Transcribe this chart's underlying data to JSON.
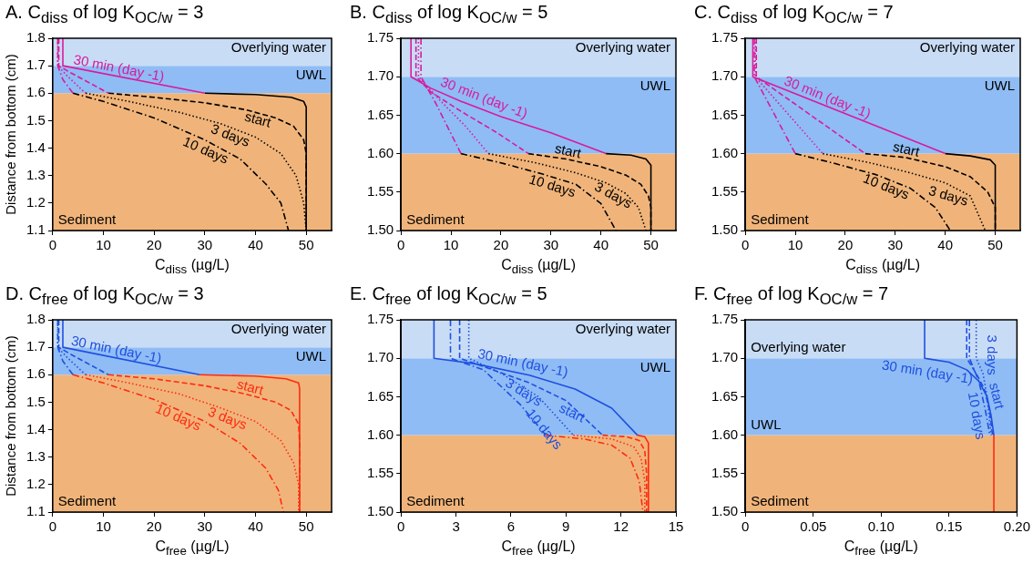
{
  "chart_data": [
    {
      "type": "line",
      "title": "A. C$_{diss}$ of log K$_{OC/w}$ = 3",
      "xlabel": "C$_{diss}$ (µg/L)",
      "ylabel": "Distance from bottom (cm)",
      "xlim": [
        0,
        55
      ],
      "xticks": [
        0,
        10,
        20,
        30,
        40,
        50
      ],
      "ylim": [
        1.1,
        1.8
      ],
      "yticks": [
        1.1,
        1.2,
        1.3,
        1.4,
        1.5,
        1.6,
        1.7,
        1.8
      ],
      "bands": [
        {
          "axis": "y",
          "from": 1.1,
          "to": 1.6,
          "color": "#f0b47a",
          "label": "Sediment"
        },
        {
          "axis": "y",
          "from": 1.6,
          "to": 1.7,
          "color": "#8fbcf5",
          "label": "UWL"
        },
        {
          "axis": "y",
          "from": 1.7,
          "to": 1.8,
          "color": "#c8dcf5",
          "label": "Overlying water"
        }
      ],
      "series": [
        {
          "name": "30 min (day -1)",
          "color": "#d81b9c",
          "line_style": "solid",
          "x": [
            2,
            2,
            30
          ],
          "values": [
            1.8,
            1.7,
            1.6
          ]
        },
        {
          "color": "#000000",
          "line_style": "solid",
          "x": [
            30,
            40,
            47,
            49.5,
            50,
            50
          ],
          "values": [
            1.6,
            1.595,
            1.585,
            1.57,
            1.55,
            1.1
          ]
        },
        {
          "color": "#d81b9c",
          "line_style": "dashed",
          "x": [
            1.2,
            1.2,
            3,
            7,
            11
          ],
          "values": [
            1.8,
            1.7,
            1.68,
            1.64,
            1.6
          ]
        },
        {
          "name": "start",
          "color": "#000000",
          "line_style": "dashed",
          "x": [
            11,
            20,
            30,
            38,
            44,
            47.5,
            49.5,
            50,
            50
          ],
          "values": [
            1.6,
            1.585,
            1.565,
            1.54,
            1.51,
            1.48,
            1.43,
            1.38,
            1.1
          ]
        },
        {
          "color": "#d81b9c",
          "line_style": "dotted",
          "x": [
            1,
            1,
            3,
            6.5
          ],
          "values": [
            1.8,
            1.7,
            1.66,
            1.6
          ]
        },
        {
          "name": "3 days",
          "color": "#000000",
          "line_style": "dotted",
          "x": [
            6.5,
            15,
            25,
            33,
            40,
            45,
            48,
            49.5,
            50
          ],
          "values": [
            1.6,
            1.57,
            1.53,
            1.49,
            1.44,
            1.38,
            1.3,
            1.2,
            1.1
          ]
        },
        {
          "color": "#d81b9c",
          "line_style": "dashdot",
          "x": [
            1,
            1,
            2,
            4
          ],
          "values": [
            1.8,
            1.7,
            1.65,
            1.6
          ]
        },
        {
          "name": "10 days",
          "color": "#000000",
          "line_style": "dashdot",
          "x": [
            4,
            10,
            20,
            30,
            37,
            42,
            45,
            46.5
          ],
          "values": [
            1.6,
            1.57,
            1.51,
            1.43,
            1.36,
            1.27,
            1.2,
            1.1
          ]
        }
      ]
    },
    {
      "type": "line",
      "title": "B. C$_{diss}$ of log K$_{OC/w}$ = 5",
      "xlabel": "C$_{diss}$ (µg/L)",
      "xlim": [
        0,
        55
      ],
      "xticks": [
        0,
        10,
        20,
        30,
        40,
        50
      ],
      "ylim": [
        1.5,
        1.75
      ],
      "yticks": [
        {
          "value": 1.5,
          "label": "1.50"
        },
        1.55,
        {
          "value": 1.6,
          "label": "1.60"
        },
        1.65,
        {
          "value": 1.7,
          "label": "1.70"
        },
        1.75
      ],
      "bands": [
        {
          "axis": "y",
          "from": 1.5,
          "to": 1.6,
          "color": "#f0b47a",
          "label": "Sediment"
        },
        {
          "axis": "y",
          "from": 1.6,
          "to": 1.7,
          "color": "#8fbcf5",
          "label": "UWL"
        },
        {
          "axis": "y",
          "from": 1.7,
          "to": 1.75,
          "color": "#c8dcf5",
          "label": "Overlying water"
        }
      ],
      "series": [
        {
          "name": "30 min (day -1)",
          "color": "#d81b9c",
          "line_style": "solid",
          "x": [
            2,
            2,
            6,
            12,
            20,
            30,
            41
          ],
          "values": [
            1.75,
            1.7,
            1.685,
            1.668,
            1.648,
            1.627,
            1.6
          ]
        },
        {
          "color": "#000000",
          "line_style": "solid",
          "x": [
            41,
            46,
            49,
            50,
            50
          ],
          "values": [
            1.6,
            1.598,
            1.593,
            1.585,
            1.5
          ]
        },
        {
          "color": "#d81b9c",
          "line_style": "dashed",
          "x": [
            3,
            3,
            6,
            12,
            19,
            25.5
          ],
          "values": [
            1.75,
            1.7,
            1.68,
            1.655,
            1.628,
            1.6
          ]
        },
        {
          "name": "start",
          "color": "#000000",
          "line_style": "dashed",
          "x": [
            25.5,
            33,
            40,
            45,
            48,
            49.5,
            50,
            50
          ],
          "values": [
            1.6,
            1.593,
            1.583,
            1.572,
            1.56,
            1.545,
            1.53,
            1.5
          ]
        },
        {
          "color": "#d81b9c",
          "line_style": "dotted",
          "x": [
            3.5,
            3.5,
            8,
            13,
            17.5
          ],
          "values": [
            1.75,
            1.7,
            1.668,
            1.635,
            1.6
          ]
        },
        {
          "name": "3 days",
          "color": "#000000",
          "line_style": "dotted",
          "x": [
            17.5,
            27,
            35,
            41,
            45,
            47.5,
            49
          ],
          "values": [
            1.6,
            1.588,
            1.575,
            1.562,
            1.548,
            1.53,
            1.5
          ]
        },
        {
          "color": "#d81b9c",
          "line_style": "dashdot",
          "x": [
            4,
            4,
            7,
            12
          ],
          "values": [
            1.75,
            1.7,
            1.665,
            1.6
          ]
        },
        {
          "name": "10 days",
          "color": "#000000",
          "line_style": "dashdot",
          "x": [
            12,
            20,
            28,
            35,
            40,
            43
          ],
          "values": [
            1.6,
            1.588,
            1.574,
            1.56,
            1.535,
            1.5
          ]
        }
      ]
    },
    {
      "type": "line",
      "title": "C. C$_{diss}$ of log K$_{OC/w}$ = 7",
      "xlabel": "C$_{diss}$ (µg/L)",
      "xlim": [
        0,
        55
      ],
      "xticks": [
        0,
        10,
        20,
        30,
        40,
        50
      ],
      "ylim": [
        1.5,
        1.75
      ],
      "yticks": [
        {
          "value": 1.5,
          "label": "1.50"
        },
        1.55,
        {
          "value": 1.6,
          "label": "1.60"
        },
        1.65,
        {
          "value": 1.7,
          "label": "1.70"
        },
        1.75
      ],
      "bands": [
        {
          "axis": "y",
          "from": 1.5,
          "to": 1.6,
          "color": "#f0b47a",
          "label": "Sediment"
        },
        {
          "axis": "y",
          "from": 1.6,
          "to": 1.7,
          "color": "#8fbcf5",
          "label": "UWL"
        },
        {
          "axis": "y",
          "from": 1.7,
          "to": 1.75,
          "color": "#c8dcf5",
          "label": "Overlying water"
        }
      ],
      "series": [
        {
          "name": "30 min (day -1)",
          "color": "#d81b9c",
          "line_style": "solid",
          "x": [
            1.5,
            1.5,
            40
          ],
          "values": [
            1.75,
            1.7,
            1.6
          ]
        },
        {
          "color": "#000000",
          "line_style": "solid",
          "x": [
            40,
            45,
            49,
            50,
            50
          ],
          "values": [
            1.6,
            1.597,
            1.592,
            1.585,
            1.5
          ]
        },
        {
          "color": "#d81b9c",
          "line_style": "dashed",
          "x": [
            2.2,
            2.2,
            24
          ],
          "values": [
            1.75,
            1.7,
            1.6
          ]
        },
        {
          "name": "start",
          "color": "#000000",
          "line_style": "dashed",
          "x": [
            24,
            32,
            40,
            45,
            48.5,
            50,
            50
          ],
          "values": [
            1.6,
            1.595,
            1.583,
            1.57,
            1.55,
            1.53,
            1.5
          ]
        },
        {
          "color": "#d81b9c",
          "line_style": "dotted",
          "x": [
            2,
            2,
            15.5
          ],
          "values": [
            1.75,
            1.7,
            1.6
          ]
        },
        {
          "name": "3 days",
          "color": "#000000",
          "line_style": "dotted",
          "x": [
            15.5,
            25,
            33,
            40,
            45,
            48
          ],
          "values": [
            1.6,
            1.588,
            1.575,
            1.562,
            1.545,
            1.5
          ]
        },
        {
          "color": "#d81b9c",
          "line_style": "dashdot",
          "x": [
            1.8,
            1.8,
            10
          ],
          "values": [
            1.75,
            1.7,
            1.6
          ]
        },
        {
          "name": "10 days",
          "color": "#000000",
          "line_style": "dashdot",
          "x": [
            10,
            18,
            26,
            33,
            38,
            41
          ],
          "values": [
            1.6,
            1.587,
            1.573,
            1.555,
            1.53,
            1.5
          ]
        }
      ]
    },
    {
      "type": "line",
      "title": "D. C$_{free}$ of log K$_{OC/w}$ = 3",
      "xlabel": "C$_{free}$ (µg/L)",
      "ylabel": "Distance from bottom (cm)",
      "xlim": [
        0,
        55
      ],
      "xticks": [
        0,
        10,
        20,
        30,
        40,
        50
      ],
      "ylim": [
        1.1,
        1.8
      ],
      "yticks": [
        1.1,
        1.2,
        1.3,
        1.4,
        1.5,
        1.6,
        1.7,
        1.8
      ],
      "bands": [
        {
          "axis": "y",
          "from": 1.1,
          "to": 1.6,
          "color": "#f0b47a",
          "label": "Sediment"
        },
        {
          "axis": "y",
          "from": 1.6,
          "to": 1.7,
          "color": "#8fbcf5",
          "label": "UWL"
        },
        {
          "axis": "y",
          "from": 1.7,
          "to": 1.8,
          "color": "#c8dcf5",
          "label": "Overlying water"
        }
      ],
      "series": [
        {
          "name": "30 min (day -1)",
          "color": "#1f4fe0",
          "line_style": "solid",
          "x": [
            2,
            2,
            29
          ],
          "values": [
            1.8,
            1.7,
            1.6
          ]
        },
        {
          "color": "#ff2a10",
          "line_style": "solid",
          "x": [
            29,
            40,
            46,
            48.5,
            48.7,
            48.7
          ],
          "values": [
            1.6,
            1.595,
            1.585,
            1.57,
            1.55,
            1.1
          ]
        },
        {
          "color": "#1f4fe0",
          "line_style": "dashed",
          "x": [
            1.2,
            1.2,
            4,
            11
          ],
          "values": [
            1.8,
            1.7,
            1.67,
            1.6
          ]
        },
        {
          "name": "start",
          "color": "#ff2a10",
          "line_style": "dashed",
          "x": [
            11,
            20,
            30,
            38,
            44,
            47,
            48.5,
            48.7,
            48.7
          ],
          "values": [
            1.6,
            1.585,
            1.56,
            1.53,
            1.5,
            1.47,
            1.42,
            1.35,
            1.1
          ]
        },
        {
          "color": "#1f4fe0",
          "line_style": "dotted",
          "x": [
            1,
            1,
            3,
            6.5
          ],
          "values": [
            1.8,
            1.7,
            1.66,
            1.6
          ]
        },
        {
          "name": "3 days",
          "color": "#ff2a10",
          "line_style": "dotted",
          "x": [
            6.5,
            15,
            25,
            33,
            40,
            45,
            47.5,
            48.5,
            48.5
          ],
          "values": [
            1.6,
            1.57,
            1.53,
            1.48,
            1.43,
            1.36,
            1.28,
            1.2,
            1.1
          ]
        },
        {
          "color": "#1f4fe0",
          "line_style": "dashdot",
          "x": [
            1,
            1,
            2,
            4
          ],
          "values": [
            1.8,
            1.7,
            1.65,
            1.6
          ]
        },
        {
          "name": "10 days",
          "color": "#ff2a10",
          "line_style": "dashdot",
          "x": [
            4,
            10,
            20,
            30,
            37,
            42,
            44.5,
            45.5
          ],
          "values": [
            1.6,
            1.57,
            1.51,
            1.43,
            1.35,
            1.26,
            1.18,
            1.1
          ]
        }
      ]
    },
    {
      "type": "line",
      "title": "E. C$_{free}$ of log K$_{OC/w}$ = 5",
      "xlabel": "C$_{free}$ (µg/L)",
      "xlim": [
        0,
        15
      ],
      "xticks": [
        0,
        3,
        6,
        9,
        12,
        15
      ],
      "ylim": [
        1.5,
        1.75
      ],
      "yticks": [
        {
          "value": 1.5,
          "label": "1.50"
        },
        1.55,
        {
          "value": 1.6,
          "label": "1.60"
        },
        1.65,
        {
          "value": 1.7,
          "label": "1.70"
        },
        1.75
      ],
      "bands": [
        {
          "axis": "y",
          "from": 1.5,
          "to": 1.6,
          "color": "#f0b47a",
          "label": "Sediment"
        },
        {
          "axis": "y",
          "from": 1.6,
          "to": 1.7,
          "color": "#8fbcf5",
          "label": "UWL"
        },
        {
          "axis": "y",
          "from": 1.7,
          "to": 1.75,
          "color": "#c8dcf5",
          "label": "Overlying water"
        }
      ],
      "series": [
        {
          "name": "30 min (day -1)",
          "color": "#1f4fe0",
          "line_style": "solid",
          "x": [
            1.8,
            1.8,
            4,
            7,
            9.5,
            11.5,
            12.9
          ],
          "values": [
            1.75,
            1.7,
            1.693,
            1.678,
            1.66,
            1.635,
            1.6
          ]
        },
        {
          "color": "#ff2a10",
          "line_style": "solid",
          "x": [
            12.9,
            13.3,
            13.5,
            13.5
          ],
          "values": [
            1.6,
            1.598,
            1.59,
            1.5
          ]
        },
        {
          "name": "start",
          "color": "#1f4fe0",
          "line_style": "dashed",
          "x": [
            3.2,
            3.2,
            5,
            7,
            9,
            11
          ],
          "values": [
            1.75,
            1.7,
            1.685,
            1.668,
            1.645,
            1.6
          ]
        },
        {
          "color": "#ff2a10",
          "line_style": "dashed",
          "x": [
            11,
            12.3,
            13,
            13.3,
            13.4,
            13.4
          ],
          "values": [
            1.6,
            1.598,
            1.593,
            1.58,
            1.55,
            1.5
          ]
        },
        {
          "name": "3 days",
          "color": "#1f4fe0",
          "line_style": "dotted",
          "x": [
            3.7,
            3.7,
            5.5,
            7.5,
            9.4
          ],
          "values": [
            1.75,
            1.7,
            1.68,
            1.65,
            1.6
          ]
        },
        {
          "color": "#ff2a10",
          "line_style": "dotted",
          "x": [
            9.4,
            11.5,
            12.7,
            13.1,
            13.3,
            13.3
          ],
          "values": [
            1.6,
            1.595,
            1.585,
            1.57,
            1.54,
            1.5
          ]
        },
        {
          "name": "10 days",
          "color": "#1f4fe0",
          "line_style": "dashdot",
          "x": [
            2.7,
            2.7,
            4.5,
            6.5,
            7.9
          ],
          "values": [
            1.75,
            1.7,
            1.685,
            1.64,
            1.6
          ]
        },
        {
          "color": "#ff2a10",
          "line_style": "dashdot",
          "x": [
            7.9,
            10,
            11.5,
            12.5,
            13,
            13.2
          ],
          "values": [
            1.6,
            1.595,
            1.587,
            1.57,
            1.54,
            1.5
          ]
        }
      ]
    },
    {
      "type": "line",
      "title": "F. C$_{free}$ of log K$_{OC/w}$ = 7",
      "xlabel": "C$_{free}$ (µg/L)",
      "xlim": [
        0,
        0.2
      ],
      "xticks": [
        0,
        0.05,
        {
          "value": 0.1,
          "label": "0.10"
        },
        0.15,
        {
          "value": 0.2,
          "label": "0.20"
        }
      ],
      "ylim": [
        1.5,
        1.75
      ],
      "yticks": [
        {
          "value": 1.5,
          "label": "1.50"
        },
        1.55,
        {
          "value": 1.6,
          "label": "1.60"
        },
        1.65,
        {
          "value": 1.7,
          "label": "1.70"
        },
        1.75
      ],
      "bands": [
        {
          "axis": "y",
          "from": 1.5,
          "to": 1.6,
          "color": "#f0b47a",
          "label": "Sediment"
        },
        {
          "axis": "y",
          "from": 1.6,
          "to": 1.7,
          "color": "#8fbcf5",
          "label": "UWL"
        },
        {
          "axis": "y",
          "from": 1.7,
          "to": 1.75,
          "color": "#c8dcf5",
          "label": "Overlying water"
        }
      ],
      "series": [
        {
          "name": "30 min (day -1)",
          "color": "#1f4fe0",
          "line_style": "solid",
          "x": [
            0.132,
            0.132,
            0.15,
            0.163,
            0.172,
            0.178,
            0.181,
            0.183
          ],
          "values": [
            1.75,
            1.7,
            1.695,
            1.685,
            1.67,
            1.65,
            1.625,
            1.6
          ]
        },
        {
          "color": "#ff2a10",
          "line_style": "solid",
          "x": [
            0.183,
            0.183
          ],
          "values": [
            1.6,
            1.5
          ]
        },
        {
          "name": "start",
          "color": "#1f4fe0",
          "line_style": "dashed",
          "x": [
            0.163,
            0.163,
            0.17,
            0.176,
            0.18,
            0.182
          ],
          "values": [
            1.75,
            1.7,
            1.68,
            1.66,
            1.63,
            1.6
          ]
        },
        {
          "name": "3 days",
          "color": "#1f4fe0",
          "line_style": "dotted",
          "x": [
            0.17,
            0.17,
            0.175,
            0.178,
            0.181
          ],
          "values": [
            1.75,
            1.7,
            1.68,
            1.65,
            1.6
          ]
        },
        {
          "name": "10 days",
          "color": "#1f4fe0",
          "line_style": "dashdot",
          "x": [
            0.165,
            0.165,
            0.172,
            0.177,
            0.18
          ],
          "values": [
            1.75,
            1.7,
            1.67,
            1.63,
            1.6
          ]
        }
      ]
    }
  ]
}
